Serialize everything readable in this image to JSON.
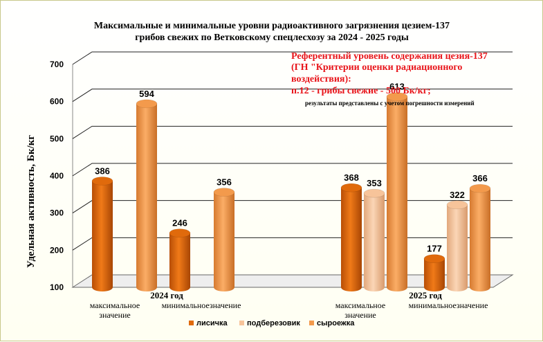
{
  "chart_data": {
    "type": "bar",
    "title_lines": [
      "Максимальные и минимальные уровни радиоактивного загрязнения цезием-137",
      "грибов свежих  по Ветковскому спецлесхозу  за 2024 - 2025 годы"
    ],
    "ylabel": "Удельная активность, Бк/кг",
    "xlabel": "",
    "ylim": [
      100,
      700
    ],
    "yticks": [
      "100",
      "200",
      "300",
      "400",
      "500",
      "600",
      "700"
    ],
    "grid": true,
    "legend_position": "bottom",
    "groups": [
      {
        "year_label": "2024 год",
        "subcategories": [
          {
            "label_lines": [
              "максимальное",
              "значение"
            ],
            "bars": [
              {
                "series": "лисичка",
                "value": 386
              },
              {
                "series": "сыроежка",
                "value": 594
              }
            ]
          },
          {
            "label_lines": [
              "минимальноезначение"
            ],
            "bars": [
              {
                "series": "лисичка",
                "value": 246
              },
              {
                "series": "сыроежка",
                "value": 356
              }
            ]
          }
        ]
      },
      {
        "year_label": "2025 год",
        "subcategories": [
          {
            "label_lines": [
              "максимальное",
              "значение"
            ],
            "bars": [
              {
                "series": "лисичка",
                "value": 368
              },
              {
                "series": "подберезовик",
                "value": 353
              },
              {
                "series": "сыроежка",
                "value": 613
              }
            ]
          },
          {
            "label_lines": [
              "минимальноезначение"
            ],
            "bars": [
              {
                "series": "лисичка",
                "value": 177
              },
              {
                "series": "подберезовик",
                "value": 322
              },
              {
                "series": "сыроежка",
                "value": 366
              }
            ]
          }
        ]
      }
    ],
    "series": [
      {
        "name": "лисичка",
        "color": "#e06a0c"
      },
      {
        "name": "подберезовик",
        "color": "#f7c49a"
      },
      {
        "name": "сыроежка",
        "color": "#f39a4c"
      }
    ],
    "annotation_lines": [
      "Референтный уровень содержания цезия-137",
      "(ГН \"Критерии  оценки радиационного",
      "воздействия):",
      "п.12 - грибы свежие - 500 Бк/кг;"
    ],
    "annotation_note": "результаты представлены с учетом погрешности измерений"
  }
}
